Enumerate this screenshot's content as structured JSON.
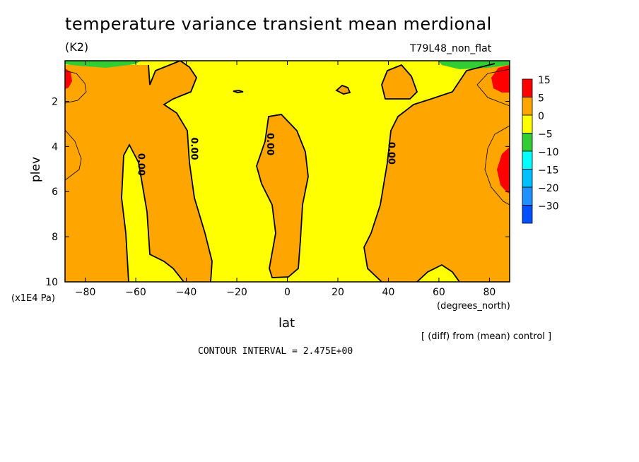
{
  "chart_data": {
    "type": "contour",
    "title": "temperature variance transient mean merdional",
    "units": "(K2)",
    "run_label": "T79L48_non_flat",
    "xlabel": "lat",
    "x_units": "(degrees_north)",
    "ylabel": "plev",
    "y_units": "(x1E4 Pa)",
    "xlim": [
      -88,
      88
    ],
    "ylim": [
      0.2,
      10
    ],
    "y_reversed": true,
    "x_ticks": [
      -80,
      -60,
      -40,
      -20,
      0,
      20,
      40,
      60,
      80
    ],
    "x_tick_labels": [
      "−80",
      "−60",
      "−40",
      "−20",
      "0",
      "20",
      "40",
      "60",
      "80"
    ],
    "y_ticks": [
      2,
      4,
      6,
      8,
      10
    ],
    "y_tick_labels": [
      "2",
      "4",
      "6",
      "8",
      "10"
    ],
    "contour_labels": [
      {
        "text": "0.00",
        "lat": -59,
        "plev": 4.8
      },
      {
        "text": "0.00",
        "lat": -38,
        "plev": 4.1
      },
      {
        "text": "0.00",
        "lat": -8,
        "plev": 3.9
      },
      {
        "text": "0.00",
        "lat": 40,
        "plev": 4.3
      }
    ],
    "legend": {
      "levels": [
        "15",
        "5",
        "0",
        "−5",
        "−10",
        "−15",
        "−20",
        "−30"
      ],
      "colors": [
        "#ff0000",
        "#ffa500",
        "#ffff00",
        "#32cd32",
        "#00ffff",
        "#00bfff",
        "#1e90ff",
        "#0050ff"
      ]
    },
    "fill_colors": {
      "positive": "#ffa500",
      "near_zero": "#ffff00",
      "high": "#ff0000",
      "negative": "#32cd32"
    }
  },
  "footer": {
    "note": "[ (diff) from (mean) control ]",
    "contour_interval": "CONTOUR INTERVAL = 2.475E+00"
  }
}
